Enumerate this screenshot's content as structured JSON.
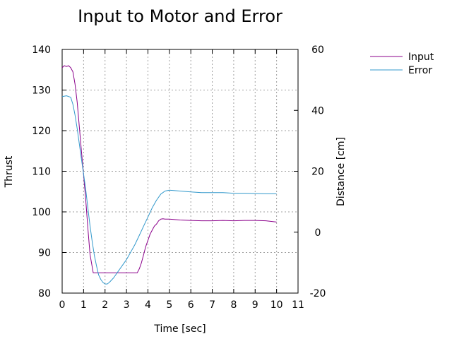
{
  "chart_data": {
    "type": "line",
    "title": "Input to Motor and Error",
    "xlabel": "Time [sec]",
    "ylabel": "Thrust",
    "y2label": "Distance [cm]",
    "xlim": [
      0,
      11
    ],
    "ylim": [
      80,
      140
    ],
    "y2lim": [
      -20,
      60
    ],
    "xticks": [
      "0",
      "1",
      "2",
      "3",
      "4",
      "5",
      "6",
      "7",
      "8",
      "9",
      "10",
      "11"
    ],
    "yticks": [
      "80",
      "90",
      "100",
      "110",
      "120",
      "130",
      "140"
    ],
    "y2ticks": [
      "-20",
      "0",
      "20",
      "40",
      "60"
    ],
    "grid": true,
    "legend_position": "top-right outside plot",
    "series": [
      {
        "name": "Input",
        "axis": "left",
        "color": "#8b008b",
        "x": [
          0,
          0.1,
          0.2,
          0.3,
          0.4,
          0.5,
          0.6,
          0.7,
          0.8,
          0.9,
          1.0,
          1.1,
          1.2,
          1.3,
          1.45,
          1.6,
          1.8,
          2.0,
          2.5,
          3.0,
          3.5,
          3.6,
          3.7,
          3.8,
          3.9,
          4.0,
          4.1,
          4.2,
          4.3,
          4.4,
          4.5,
          4.6,
          4.7,
          4.8,
          5.0,
          5.5,
          6.0,
          6.5,
          7.0,
          7.5,
          8.0,
          8.5,
          9.0,
          9.5,
          10.0
        ],
        "values": [
          135.5,
          136.0,
          135.8,
          136.0,
          135.5,
          134.5,
          131.5,
          127.0,
          121.0,
          115.0,
          109.0,
          103.0,
          96.0,
          89.5,
          85.0,
          85.0,
          85.0,
          85.0,
          85.0,
          85.0,
          85.0,
          86.0,
          87.5,
          89.5,
          91.5,
          93.0,
          94.5,
          95.5,
          96.5,
          97.0,
          97.8,
          98.2,
          98.3,
          98.2,
          98.2,
          98.0,
          97.9,
          97.8,
          97.8,
          97.9,
          97.8,
          97.9,
          97.9,
          97.8,
          97.5
        ]
      },
      {
        "name": "Error",
        "axis": "right",
        "color": "#3399cc",
        "x": [
          0,
          0.2,
          0.4,
          0.5,
          0.6,
          0.7,
          0.8,
          0.9,
          1.0,
          1.1,
          1.2,
          1.3,
          1.4,
          1.5,
          1.6,
          1.7,
          1.8,
          1.9,
          2.0,
          2.1,
          2.2,
          2.4,
          2.6,
          2.8,
          3.0,
          3.2,
          3.4,
          3.6,
          3.8,
          4.0,
          4.2,
          4.4,
          4.6,
          4.8,
          5.0,
          5.5,
          6.0,
          6.5,
          7.0,
          7.5,
          8.0,
          8.5,
          9.0,
          9.5,
          10.0
        ],
        "values": [
          44.5,
          44.8,
          44.3,
          42.0,
          38.5,
          34.0,
          29.0,
          24.0,
          19.0,
          14.0,
          8.0,
          2.0,
          -3.0,
          -7.5,
          -11.0,
          -14.0,
          -15.5,
          -16.5,
          -17.0,
          -17.0,
          -16.5,
          -15.0,
          -13.0,
          -11.0,
          -9.0,
          -6.5,
          -4.0,
          -1.0,
          2.0,
          5.0,
          8.0,
          10.5,
          12.5,
          13.5,
          13.8,
          13.5,
          13.2,
          13.0,
          13.0,
          13.0,
          12.8,
          12.8,
          12.7,
          12.6,
          12.6
        ]
      }
    ]
  }
}
